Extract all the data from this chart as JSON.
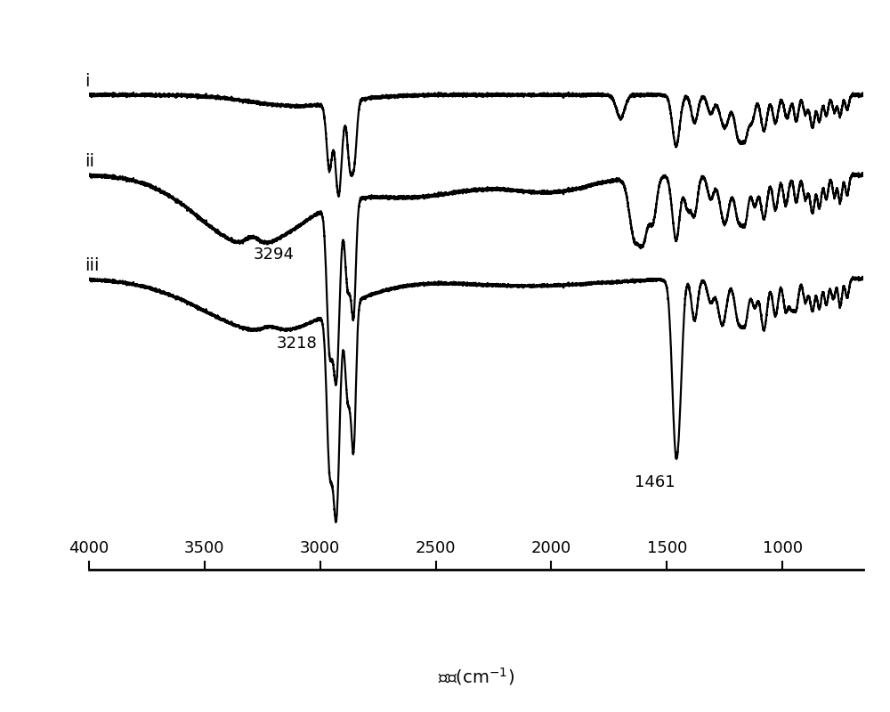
{
  "xmin": 650,
  "xmax": 4000,
  "xlabel": "波数(cm-1)",
  "xticks": [
    4000,
    3500,
    3000,
    2500,
    2000,
    1500,
    1000
  ],
  "label_i": "i",
  "label_ii": "ii",
  "label_iii": "iii",
  "annotation_3294": "3294",
  "annotation_3218": "3218",
  "annotation_1461": "1461",
  "background_color": "#ffffff",
  "line_color": "#000000",
  "linewidth": 1.6,
  "noise_scale": 0.008
}
